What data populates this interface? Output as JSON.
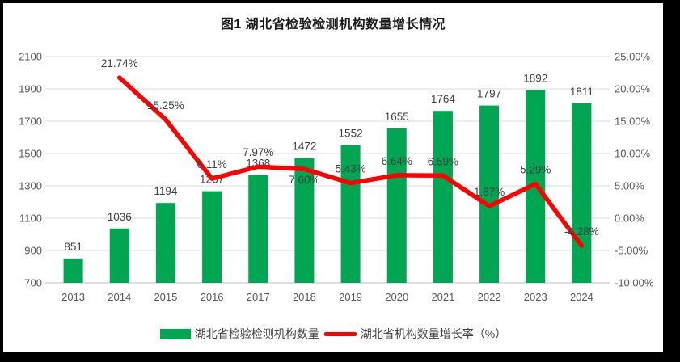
{
  "chart_data": {
    "type": "combo",
    "title": "图1 湖北省检验检测机构数量增长情况",
    "categories": [
      "2013",
      "2014",
      "2015",
      "2016",
      "2017",
      "2018",
      "2019",
      "2020",
      "2021",
      "2022",
      "2023",
      "2024"
    ],
    "series": [
      {
        "name": "湖北省检验检测机构数量",
        "type": "bar",
        "axis": "left",
        "color": "#00A651",
        "values": [
          851,
          1036,
          1194,
          1267,
          1368,
          1472,
          1552,
          1655,
          1764,
          1797,
          1892,
          1811
        ],
        "labels": [
          "851",
          "1036",
          "1194",
          "1267",
          "1368",
          "1472",
          "1552",
          "1655",
          "1764",
          "1797",
          "1892",
          "1811"
        ]
      },
      {
        "name": "湖北省机构数量增长率（%）",
        "type": "line",
        "axis": "right",
        "color": "#FF0000",
        "values": [
          null,
          21.74,
          15.25,
          6.11,
          7.97,
          7.6,
          5.43,
          6.64,
          6.59,
          1.87,
          5.29,
          -4.28
        ],
        "labels": [
          "",
          "21.74%",
          "15.25%",
          "6.11%",
          "7.97%",
          "7.60%",
          "5.43%",
          "6.64%",
          "6.59%",
          "1.87%",
          "5.29%",
          "-4.28%"
        ],
        "label_below_indices": [
          5
        ]
      }
    ],
    "left_axis": {
      "min": 700,
      "max": 2100,
      "step": 200,
      "ticks": [
        "700",
        "900",
        "1100",
        "1300",
        "1500",
        "1700",
        "1900",
        "2100"
      ]
    },
    "right_axis": {
      "min": -10,
      "max": 25,
      "step": 5,
      "ticks": [
        "-10.00%",
        "-5.00%",
        "0.00%",
        "5.00%",
        "10.00%",
        "15.00%",
        "20.00%",
        "25.00%"
      ]
    },
    "legend": {
      "position": "bottom",
      "bar_label": "湖北省检验检测机构数量",
      "line_label": "湖北省机构数量增长率（%）"
    },
    "grid": true,
    "colors": {
      "grid": "#D9D9D9",
      "axis_line": "#BFBFBF",
      "tick_text": "#595959",
      "data_label": "#404040",
      "background": "#FFFFFF",
      "frame": "#000000"
    }
  }
}
